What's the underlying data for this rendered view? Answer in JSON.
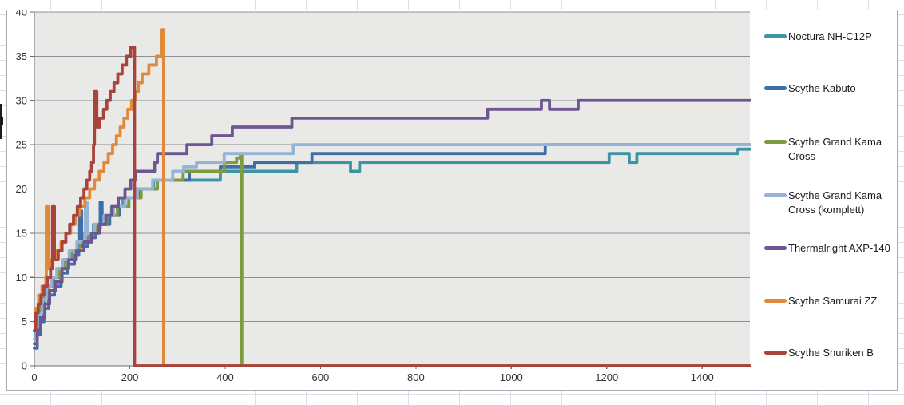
{
  "chart_data": {
    "type": "line",
    "line_style": "step-after",
    "title": "",
    "xlabel": "",
    "ylabel": "",
    "grid": true,
    "legend_position": "right",
    "plot_bg_color": "#E9E9E8",
    "grid_color": "#909090",
    "axis_color": "#6B6B6B",
    "tick_label_color": "#333333",
    "x_axis": {
      "min": 0,
      "max": 1500,
      "tick_interval": 200,
      "tick_labels": [
        "0",
        "200",
        "400",
        "600",
        "800",
        "1000",
        "1200",
        "1400"
      ]
    },
    "y_axis": {
      "min": 0,
      "max": 40,
      "tick_interval": 5,
      "tick_labels": [
        "0",
        "5",
        "10",
        "15",
        "20",
        "25",
        "30",
        "35",
        "40"
      ]
    },
    "series": [
      {
        "name": "Noctura NH-C12P",
        "color": "#3E93A5",
        "points": [
          [
            0,
            3
          ],
          [
            3,
            4.5
          ],
          [
            8,
            6
          ],
          [
            14,
            7
          ],
          [
            20,
            8
          ],
          [
            28,
            9
          ],
          [
            38,
            10
          ],
          [
            50,
            11
          ],
          [
            62,
            12
          ],
          [
            76,
            13
          ],
          [
            90,
            14
          ],
          [
            106,
            15
          ],
          [
            124,
            16
          ],
          [
            142,
            17
          ],
          [
            162,
            18
          ],
          [
            186,
            19
          ],
          [
            212,
            20
          ],
          [
            250,
            21
          ],
          [
            390,
            22
          ],
          [
            550,
            23
          ],
          [
            663,
            22
          ],
          [
            682,
            23
          ],
          [
            1205,
            24
          ],
          [
            1247,
            23
          ],
          [
            1263,
            24
          ],
          [
            1475,
            24.5
          ],
          [
            1500,
            24.5
          ]
        ]
      },
      {
        "name": "Scythe Kabuto",
        "color": "#3E6FA6",
        "points": [
          [
            0,
            2
          ],
          [
            6,
            3.5
          ],
          [
            12,
            5
          ],
          [
            20,
            6.5
          ],
          [
            30,
            8
          ],
          [
            42,
            9
          ],
          [
            56,
            10.5
          ],
          [
            70,
            11.5
          ],
          [
            84,
            12.5
          ],
          [
            93,
            13.5
          ],
          [
            95,
            17.5
          ],
          [
            99,
            13.5
          ],
          [
            112,
            14.5
          ],
          [
            128,
            15.5
          ],
          [
            138,
            18.5
          ],
          [
            142,
            16
          ],
          [
            158,
            17
          ],
          [
            178,
            18
          ],
          [
            198,
            19
          ],
          [
            222,
            20
          ],
          [
            258,
            21
          ],
          [
            325,
            22
          ],
          [
            390,
            22.5
          ],
          [
            462,
            23
          ],
          [
            582,
            24
          ],
          [
            1071,
            25
          ],
          [
            1500,
            25
          ]
        ]
      },
      {
        "name": "Scythe Grand Kama Cross",
        "color": "#7C9C3F",
        "points": [
          [
            0,
            3
          ],
          [
            4,
            5
          ],
          [
            10,
            6.5
          ],
          [
            18,
            8
          ],
          [
            28,
            9
          ],
          [
            40,
            10
          ],
          [
            52,
            11
          ],
          [
            66,
            12
          ],
          [
            80,
            13
          ],
          [
            96,
            14
          ],
          [
            114,
            15
          ],
          [
            132,
            16
          ],
          [
            152,
            17
          ],
          [
            174,
            18
          ],
          [
            198,
            19
          ],
          [
            224,
            20
          ],
          [
            258,
            21
          ],
          [
            312,
            22
          ],
          [
            398,
            23
          ],
          [
            424,
            23.5
          ],
          [
            432,
            24
          ],
          [
            435,
            0
          ],
          [
            1500,
            0
          ]
        ]
      },
      {
        "name": "Scythe Grand Kama Cross (komplett)",
        "color": "#95B3D7",
        "points": [
          [
            0,
            3
          ],
          [
            4,
            4.5
          ],
          [
            10,
            6
          ],
          [
            17,
            7.5
          ],
          [
            25,
            9
          ],
          [
            35,
            10
          ],
          [
            47,
            11
          ],
          [
            59,
            12
          ],
          [
            73,
            13
          ],
          [
            89,
            14
          ],
          [
            107,
            18.5
          ],
          [
            111,
            15
          ],
          [
            126,
            16
          ],
          [
            146,
            17
          ],
          [
            166,
            18
          ],
          [
            190,
            19
          ],
          [
            216,
            20
          ],
          [
            248,
            21
          ],
          [
            290,
            22
          ],
          [
            313,
            22.5
          ],
          [
            340,
            23
          ],
          [
            398,
            24
          ],
          [
            543,
            25
          ],
          [
            1500,
            25
          ]
        ]
      },
      {
        "name": "Thermalright AXP-140",
        "color": "#6F5591",
        "points": [
          [
            0,
            2.5
          ],
          [
            6,
            4
          ],
          [
            13,
            5.5
          ],
          [
            22,
            7
          ],
          [
            32,
            8.5
          ],
          [
            44,
            9.5
          ],
          [
            58,
            11
          ],
          [
            72,
            12
          ],
          [
            88,
            13
          ],
          [
            104,
            14
          ],
          [
            120,
            15
          ],
          [
            136,
            16
          ],
          [
            150,
            17
          ],
          [
            163,
            18
          ],
          [
            176,
            19
          ],
          [
            190,
            20
          ],
          [
            202,
            21
          ],
          [
            212,
            22
          ],
          [
            252,
            23
          ],
          [
            258,
            24
          ],
          [
            320,
            25
          ],
          [
            372,
            26
          ],
          [
            415,
            27
          ],
          [
            540,
            28
          ],
          [
            950,
            29
          ],
          [
            1063,
            30
          ],
          [
            1080,
            29
          ],
          [
            1140,
            30
          ],
          [
            1500,
            30
          ]
        ]
      },
      {
        "name": "Scythe Samurai ZZ",
        "color": "#E08A39",
        "points": [
          [
            0,
            5
          ],
          [
            3,
            6.5
          ],
          [
            9,
            8
          ],
          [
            16,
            9
          ],
          [
            24,
            10
          ],
          [
            25,
            18
          ],
          [
            29,
            11
          ],
          [
            36,
            12
          ],
          [
            46,
            13
          ],
          [
            56,
            14
          ],
          [
            66,
            15
          ],
          [
            76,
            16
          ],
          [
            86,
            17
          ],
          [
            96,
            18
          ],
          [
            106,
            19
          ],
          [
            116,
            20
          ],
          [
            126,
            21
          ],
          [
            136,
            22
          ],
          [
            146,
            23
          ],
          [
            155,
            24
          ],
          [
            164,
            25
          ],
          [
            172,
            26
          ],
          [
            180,
            27
          ],
          [
            188,
            28
          ],
          [
            196,
            29
          ],
          [
            204,
            30
          ],
          [
            211,
            31
          ],
          [
            218,
            32
          ],
          [
            226,
            33
          ],
          [
            240,
            34
          ],
          [
            256,
            35
          ],
          [
            266,
            38
          ],
          [
            271,
            0
          ],
          [
            1500,
            0
          ]
        ]
      },
      {
        "name": "Scythe Shuriken B",
        "color": "#A8443C",
        "points": [
          [
            0,
            4
          ],
          [
            3,
            6
          ],
          [
            8,
            7
          ],
          [
            14,
            8
          ],
          [
            20,
            9
          ],
          [
            27,
            10
          ],
          [
            34,
            11
          ],
          [
            38,
            18
          ],
          [
            42,
            12
          ],
          [
            50,
            13
          ],
          [
            58,
            14
          ],
          [
            66,
            15
          ],
          [
            74,
            16
          ],
          [
            82,
            17
          ],
          [
            90,
            18
          ],
          [
            97,
            19
          ],
          [
            104,
            20
          ],
          [
            110,
            21
          ],
          [
            116,
            22
          ],
          [
            120,
            23
          ],
          [
            124,
            25
          ],
          [
            126,
            31
          ],
          [
            131,
            27
          ],
          [
            137,
            28
          ],
          [
            145,
            29
          ],
          [
            152,
            30
          ],
          [
            159,
            31
          ],
          [
            167,
            32
          ],
          [
            175,
            33
          ],
          [
            184,
            34
          ],
          [
            193,
            35
          ],
          [
            202,
            36
          ],
          [
            210,
            0
          ],
          [
            1500,
            0
          ]
        ]
      }
    ]
  }
}
